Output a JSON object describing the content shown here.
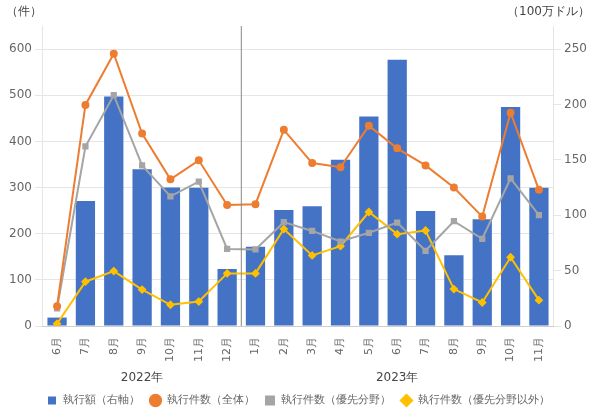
{
  "chart_data": {
    "type": "bar",
    "categories": [
      "6月",
      "7月",
      "8月",
      "9月",
      "10月",
      "11月",
      "12月",
      "1月",
      "2月",
      "3月",
      "4月",
      "5月",
      "6月",
      "7月",
      "8月",
      "9月",
      "10月",
      "11月"
    ],
    "ylabel": "（件）",
    "y2label": "（100万ドル）",
    "series": [
      {
        "name": "執行額（右軸）",
        "type": "bar",
        "axis": "y2",
        "color": "#4472C4",
        "values": [
          7.6,
          112.9,
          207.1,
          141.4,
          125.0,
          124.7,
          51.5,
          71.6,
          104.8,
          108.1,
          150.1,
          189.2,
          240.4,
          103.8,
          63.8,
          96.4,
          197.7,
          124.7
        ]
      },
      {
        "name": "執行件数（全体）",
        "type": "line",
        "color": "#ED7D31",
        "marker": "circle",
        "values": [
          43,
          479,
          590,
          417,
          318,
          359,
          262,
          264,
          425,
          353,
          344,
          434,
          385,
          348,
          300,
          237,
          462,
          295
        ]
      },
      {
        "name": "執行件数（優先分野）",
        "type": "line",
        "color": "#A5A5A5",
        "marker": "square",
        "values": [
          38,
          389,
          500,
          348,
          281,
          313,
          167,
          166,
          225,
          206,
          183,
          202,
          224,
          163,
          227,
          189,
          320,
          240
        ]
      },
      {
        "name": "執行件数（優先分野以外）",
        "type": "line",
        "color": "#FFC000",
        "marker": "diamond",
        "values": [
          5,
          96,
          119,
          79,
          46,
          53,
          114,
          114,
          210,
          153,
          173,
          247,
          199,
          207,
          80,
          51,
          149,
          56
        ]
      }
    ],
    "ylim": [
      0,
      650
    ],
    "yticks": [
      0,
      100,
      200,
      300,
      400,
      500,
      600
    ],
    "y2lim": [
      0,
      270.8
    ],
    "y2ticks": [
      0,
      50,
      100,
      150,
      200,
      250
    ],
    "grid": true,
    "legend": "bottom",
    "annotations": [
      {
        "text": "2022年",
        "x": 3.0
      },
      {
        "text": "2023年",
        "x": 12.0
      }
    ],
    "vlines": [
      {
        "x": 6.5,
        "color": "#888888"
      }
    ]
  }
}
